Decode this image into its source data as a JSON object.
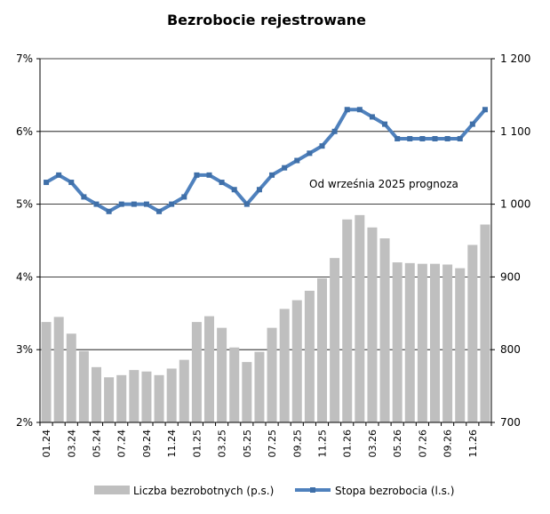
{
  "chart_data": {
    "type": "bar+line",
    "title": "Bezrobocie rejestrowane",
    "categories": [
      "01.24",
      "02.24",
      "03.24",
      "04.24",
      "05.24",
      "06.24",
      "07.24",
      "08.24",
      "09.24",
      "10.24",
      "11.24",
      "12.24",
      "01.25",
      "02.25",
      "03.25",
      "04.25",
      "05.25",
      "06.25",
      "07.25",
      "08.25",
      "09.25",
      "10.25",
      "11.25",
      "12.25",
      "01.26",
      "02.26",
      "03.26",
      "04.26",
      "05.26",
      "06.26",
      "07.26",
      "08.26",
      "09.26",
      "10.26",
      "11.26",
      "12.26"
    ],
    "x_tick_labels": [
      "01.24",
      "03.24",
      "05.24",
      "07.24",
      "09.24",
      "11.24",
      "01.25",
      "03.25",
      "05.25",
      "07.25",
      "09.25",
      "11.25",
      "01.26",
      "03.26",
      "05.26",
      "07.26",
      "09.26",
      "11.26"
    ],
    "series": [
      {
        "name": "Liczba bezrobotnych (p.s.)",
        "type": "bar",
        "axis": "right",
        "color": "#bfbfbf",
        "values": [
          838,
          845,
          822,
          798,
          776,
          762,
          765,
          772,
          770,
          765,
          774,
          786,
          838,
          846,
          830,
          803,
          783,
          797,
          830,
          856,
          868,
          881,
          898,
          926,
          979,
          985,
          968,
          953,
          920,
          919,
          918,
          918,
          917,
          912,
          944,
          972
        ]
      },
      {
        "name": "Stopa bezrobocia (l.s.)",
        "type": "line",
        "axis": "left",
        "color": "#4f81bd",
        "values": [
          5.3,
          5.4,
          5.3,
          5.1,
          5.0,
          4.9,
          5.0,
          5.0,
          5.0,
          4.9,
          5.0,
          5.1,
          5.4,
          5.4,
          5.3,
          5.2,
          5.0,
          5.2,
          5.4,
          5.5,
          5.6,
          5.7,
          5.8,
          6.0,
          6.3,
          6.3,
          6.2,
          6.1,
          5.9,
          5.9,
          5.9,
          5.9,
          5.9,
          5.9,
          6.1,
          6.3
        ]
      }
    ],
    "left_axis": {
      "min": 2,
      "max": 7,
      "ticks": [
        {
          "v": 2,
          "label": "2%"
        },
        {
          "v": 3,
          "label": "3%"
        },
        {
          "v": 4,
          "label": "4%"
        },
        {
          "v": 5,
          "label": "5%"
        },
        {
          "v": 6,
          "label": "6%"
        },
        {
          "v": 7,
          "label": "7%"
        }
      ]
    },
    "right_axis": {
      "min": 700,
      "max": 1200,
      "ticks": [
        {
          "v": 700,
          "label": "700"
        },
        {
          "v": 800,
          "label": "800"
        },
        {
          "v": 900,
          "label": "900"
        },
        {
          "v": 1000,
          "label": "1 000"
        },
        {
          "v": 1100,
          "label": "1 100"
        },
        {
          "v": 1200,
          "label": "1 200"
        }
      ]
    },
    "annotation": "Od września 2025 prognoza",
    "grid": true,
    "legend_position": "bottom"
  }
}
